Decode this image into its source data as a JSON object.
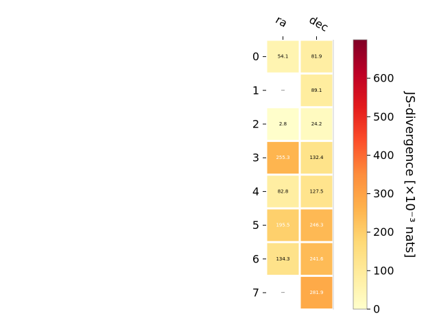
{
  "chart_data": {
    "type": "heatmap",
    "columns": [
      "ra",
      "dec"
    ],
    "rows": [
      "0",
      "1",
      "2",
      "3",
      "4",
      "5",
      "6",
      "7"
    ],
    "values": [
      [
        54.1,
        81.9
      ],
      [
        null,
        89.1
      ],
      [
        2.8,
        24.2
      ],
      [
        255.3,
        132.4
      ],
      [
        82.8,
        127.5
      ],
      [
        195.5,
        246.3
      ],
      [
        134.3,
        241.6
      ],
      [
        null,
        281.9
      ]
    ],
    "cell_labels": [
      [
        "54.1",
        "81.9"
      ],
      [
        "--",
        "89.1"
      ],
      [
        "2.8",
        "24.2"
      ],
      [
        "255.3",
        "132.4"
      ],
      [
        "82.8",
        "127.5"
      ],
      [
        "195.5",
        "246.3"
      ],
      [
        "134.3",
        "241.6"
      ],
      [
        "--",
        "281.9"
      ]
    ],
    "colormap": "YlOrRd",
    "vmin": 0,
    "vmax": 700,
    "colorbar_ticks": [
      0,
      100,
      200,
      300,
      400,
      500,
      600
    ],
    "colorbar_tick_labels": [
      "0",
      "100",
      "200",
      "300",
      "400",
      "500",
      "600"
    ],
    "colorbar_label": "JS-divergence [×10⁻³ nats]"
  }
}
